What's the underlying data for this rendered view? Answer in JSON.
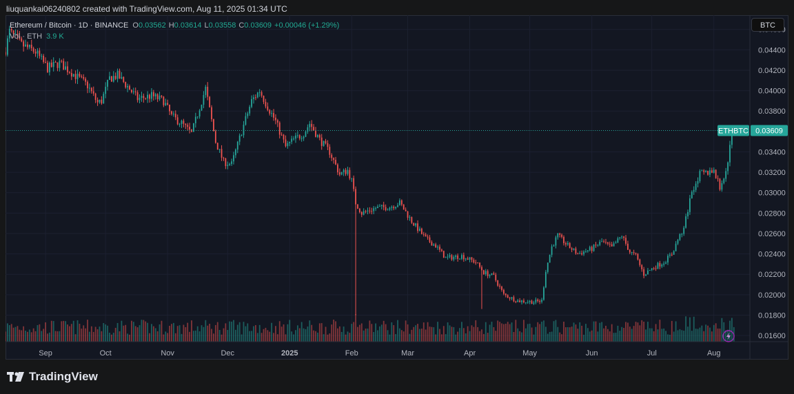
{
  "header": {
    "text": "liuquankai06240802 created with TradingView.com, Aug 11, 2025 01:34 UTC"
  },
  "legend": {
    "symbol": "Ethereum / Bitcoin · 1D · BINANCE",
    "o_label": "O",
    "o": "0.03562",
    "h_label": "H",
    "h": "0.03614",
    "l_label": "L",
    "l": "0.03558",
    "c_label": "C",
    "c": "0.03609",
    "change": "+0.00046 (+1.29%)",
    "vol_label": "Vol · ETH",
    "vol": "3.9 K"
  },
  "currency_button": "BTC",
  "price_label": {
    "ticker": "ETHBTC",
    "price": "0.03609"
  },
  "footer": {
    "brand": "TradingView"
  },
  "colors": {
    "up": "#26a69a",
    "down": "#ef5350",
    "background": "#131722",
    "grid": "#1e222d"
  },
  "chart_data": {
    "type": "candlestick",
    "symbol": "ETHBTC",
    "interval": "1D",
    "y_axis_ticks": [
      "0.04600",
      "0.04400",
      "0.04200",
      "0.04000",
      "0.03800",
      "0.03400",
      "0.03200",
      "0.03000",
      "0.02800",
      "0.02600",
      "0.02400",
      "0.02200",
      "0.02000",
      "0.01800",
      "0.01600"
    ],
    "ylim": [
      0.0154,
      0.0474
    ],
    "x_axis_ticks": [
      "Sep",
      "Oct",
      "Nov",
      "Dec",
      "2025",
      "Feb",
      "Mar",
      "Apr",
      "May",
      "Jun",
      "Jul",
      "Aug"
    ],
    "x_tick_dates": [
      "2024-09-01",
      "2024-10-01",
      "2024-11-01",
      "2024-12-01",
      "2025-01-01",
      "2025-02-01",
      "2025-03-01",
      "2025-04-01",
      "2025-05-01",
      "2025-06-01",
      "2025-07-01",
      "2025-08-01"
    ],
    "x_range": [
      "2024-08-12",
      "2025-08-19"
    ],
    "close_path": [
      [
        "2024-08-12",
        0.044
      ],
      [
        "2024-08-14",
        0.0458
      ],
      [
        "2024-08-20",
        0.0445
      ],
      [
        "2024-08-27",
        0.0438
      ],
      [
        "2024-09-02",
        0.0422
      ],
      [
        "2024-09-08",
        0.0427
      ],
      [
        "2024-09-14",
        0.0418
      ],
      [
        "2024-09-22",
        0.0405
      ],
      [
        "2024-09-27",
        0.0388
      ],
      [
        "2024-09-29",
        0.039
      ],
      [
        "2024-10-03",
        0.0412
      ],
      [
        "2024-10-07",
        0.0415
      ],
      [
        "2024-10-12",
        0.0404
      ],
      [
        "2024-10-17",
        0.0392
      ],
      [
        "2024-10-24",
        0.0395
      ],
      [
        "2024-10-30",
        0.039
      ],
      [
        "2024-11-03",
        0.0375
      ],
      [
        "2024-11-08",
        0.0368
      ],
      [
        "2024-11-13",
        0.0358
      ],
      [
        "2024-11-18",
        0.039
      ],
      [
        "2024-11-20",
        0.0402
      ],
      [
        "2024-11-25",
        0.035
      ],
      [
        "2024-11-29",
        0.033
      ],
      [
        "2024-12-03",
        0.0328
      ],
      [
        "2024-12-08",
        0.036
      ],
      [
        "2024-12-13",
        0.039
      ],
      [
        "2024-12-17",
        0.04
      ],
      [
        "2024-12-20",
        0.0388
      ],
      [
        "2024-12-25",
        0.037
      ],
      [
        "2024-12-30",
        0.0345
      ],
      [
        "2025-01-03",
        0.0352
      ],
      [
        "2025-01-08",
        0.0358
      ],
      [
        "2025-01-11",
        0.0368
      ],
      [
        "2025-01-16",
        0.0352
      ],
      [
        "2025-01-21",
        0.034
      ],
      [
        "2025-01-26",
        0.0318
      ],
      [
        "2025-01-30",
        0.0322
      ],
      [
        "2025-02-01",
        0.0312
      ],
      [
        "2025-02-03",
        0.029
      ],
      [
        "2025-02-06",
        0.028
      ],
      [
        "2025-02-13",
        0.0285
      ],
      [
        "2025-02-20",
        0.0286
      ],
      [
        "2025-02-25",
        0.029
      ],
      [
        "2025-03-03",
        0.0272
      ],
      [
        "2025-03-10",
        0.0255
      ],
      [
        "2025-03-15",
        0.0248
      ],
      [
        "2025-03-20",
        0.0236
      ],
      [
        "2025-03-28",
        0.0238
      ],
      [
        "2025-04-04",
        0.0232
      ],
      [
        "2025-04-08",
        0.0222
      ],
      [
        "2025-04-13",
        0.0218
      ],
      [
        "2025-04-18",
        0.02
      ],
      [
        "2025-04-25",
        0.0194
      ],
      [
        "2025-05-03",
        0.0193
      ],
      [
        "2025-05-07",
        0.0194
      ],
      [
        "2025-05-09",
        0.0224
      ],
      [
        "2025-05-12",
        0.0247
      ],
      [
        "2025-05-15",
        0.0258
      ],
      [
        "2025-05-20",
        0.0248
      ],
      [
        "2025-05-25",
        0.024
      ],
      [
        "2025-06-01",
        0.0245
      ],
      [
        "2025-06-06",
        0.0252
      ],
      [
        "2025-06-11",
        0.0246
      ],
      [
        "2025-06-16",
        0.0258
      ],
      [
        "2025-06-20",
        0.0242
      ],
      [
        "2025-06-23",
        0.0238
      ],
      [
        "2025-06-27",
        0.022
      ],
      [
        "2025-07-02",
        0.0227
      ],
      [
        "2025-07-07",
        0.0232
      ],
      [
        "2025-07-11",
        0.024
      ],
      [
        "2025-07-14",
        0.0254
      ],
      [
        "2025-07-17",
        0.0265
      ],
      [
        "2025-07-21",
        0.0302
      ],
      [
        "2025-07-25",
        0.0318
      ],
      [
        "2025-07-29",
        0.032
      ],
      [
        "2025-08-01",
        0.0322
      ],
      [
        "2025-08-04",
        0.0305
      ],
      [
        "2025-08-07",
        0.032
      ],
      [
        "2025-08-10",
        0.0356
      ],
      [
        "2025-08-11",
        0.03609
      ]
    ],
    "last_price": 0.03609,
    "last_candle": {
      "open": 0.03562,
      "high": 0.03614,
      "low": 0.03558,
      "close": 0.03609,
      "change": 0.00046,
      "change_pct": 1.29
    },
    "volume_unit": "ETH",
    "last_volume": "3.9 K"
  }
}
